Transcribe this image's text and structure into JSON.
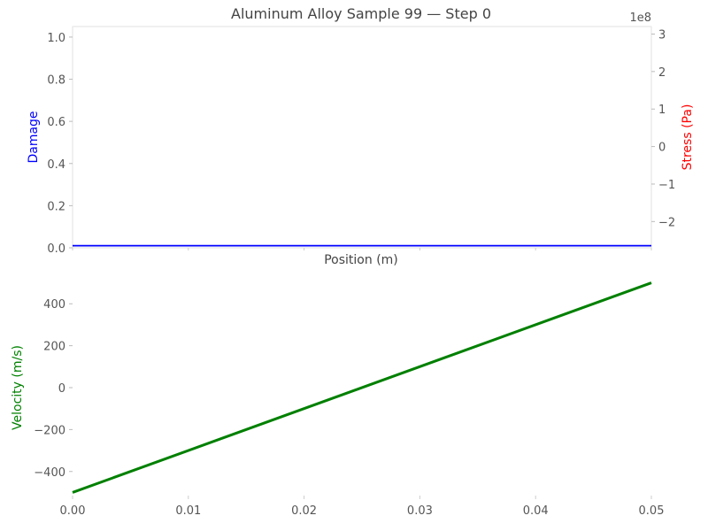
{
  "chart_data": [
    {
      "type": "line",
      "title": "Aluminum Alloy Sample 99 — Step 0",
      "xlabel": "Position (m)",
      "ylabel": "Damage",
      "ylabel_right": "Stress (Pa)",
      "right_axis_scale_label": "1e8",
      "xlim": [
        0,
        0.05
      ],
      "ylim": [
        0,
        1.05
      ],
      "ylim_right": [
        -2.7,
        3.2
      ],
      "yticks": [
        0.0,
        0.2,
        0.4,
        0.6,
        0.8,
        1.0
      ],
      "ytick_labels": [
        "0.0",
        "0.2",
        "0.4",
        "0.6",
        "0.8",
        "1.0"
      ],
      "yticks_right": [
        -2,
        -1,
        0,
        1,
        2,
        3
      ],
      "ytick_labels_right": [
        "−2",
        "−1",
        "0",
        "1",
        "2",
        "3"
      ],
      "grid": false,
      "series": [
        {
          "name": "Damage",
          "axis": "left",
          "color": "#0000ff",
          "x": [
            0,
            0.05
          ],
          "y": [
            0.01,
            0.01
          ]
        }
      ]
    },
    {
      "type": "line",
      "title": "",
      "xlabel": "",
      "ylabel": "Velocity (m/s)",
      "xlim": [
        0,
        0.05
      ],
      "ylim": [
        -515,
        515
      ],
      "xticks": [
        0,
        0.01,
        0.02,
        0.03,
        0.04,
        0.05
      ],
      "xtick_labels": [
        "0.00",
        "0.01",
        "0.02",
        "0.03",
        "0.04",
        "0.05"
      ],
      "yticks": [
        -400,
        -200,
        0,
        200,
        400
      ],
      "ytick_labels": [
        "−400",
        "−200",
        "0",
        "200",
        "400"
      ],
      "grid": false,
      "series": [
        {
          "name": "Velocity",
          "color": "#008000",
          "x": [
            0,
            0.05
          ],
          "y": [
            -500,
            500
          ]
        }
      ]
    }
  ],
  "colors": {
    "damage": "#0000ff",
    "stress": "#ff0000",
    "velocity": "#008000",
    "axes": "#dddddd",
    "text": "#333333"
  }
}
